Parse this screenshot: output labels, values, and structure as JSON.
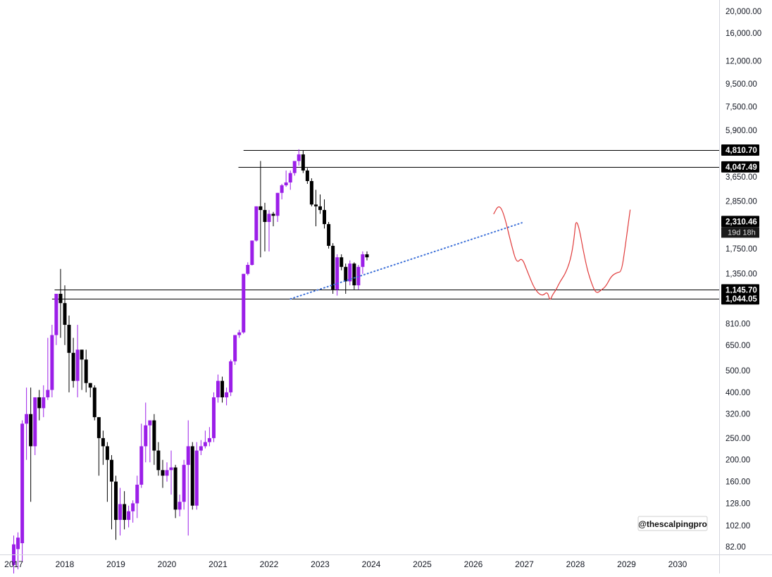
{
  "chart_data": {
    "type": "candlestick",
    "scale": "log",
    "interval": "1M",
    "colors": {
      "up": "#9b1ee8",
      "down": "#000000",
      "trendline": "#3b6fd8",
      "projection": "#e03a3a",
      "level": "#000000",
      "badge_bg": "#000000",
      "badge_text": "#ffffff"
    },
    "price_axis": {
      "ticks": [
        20000,
        16000,
        12000,
        9500,
        7500,
        5900,
        4810.7,
        4047.49,
        3650,
        2850,
        2310.46,
        1750,
        1350,
        1145.7,
        1044.05,
        810,
        650,
        500,
        400,
        320,
        250,
        200,
        160,
        128,
        102,
        82
      ],
      "tick_labels": [
        "20,000.00",
        "16,000.00",
        "12,000.00",
        "9,500.00",
        "7,500.00",
        "5,900.00",
        "4,810.70",
        "4,047.49",
        "3,650.00",
        "2,850.00",
        "2,310.46",
        "1,750.00",
        "1,350.00",
        "1,145.70",
        "1,044.05",
        "810.00",
        "650.00",
        "500.00",
        "400.00",
        "320.00",
        "250.00",
        "200.00",
        "160.00",
        "128.00",
        "102.00",
        "82.00"
      ],
      "range": [
        70,
        23500
      ]
    },
    "time_axis": {
      "labels": [
        "2017",
        "2018",
        "2019",
        "2020",
        "2021",
        "2022",
        "2023",
        "2024",
        "2025",
        "2026",
        "2027",
        "2028",
        "2029",
        "2030"
      ],
      "range": [
        2016.85,
        2030.9
      ]
    },
    "levels": [
      {
        "price": 4810.7,
        "label": "4,810.70",
        "from": 2021.5
      },
      {
        "price": 4047.49,
        "label": "4,047.49",
        "from": 2021.4
      },
      {
        "price": 1145.7,
        "label": "1,145.70",
        "from": 2017.8
      },
      {
        "price": 1044.05,
        "label": "1,044.05",
        "from": 2017.75
      }
    ],
    "current_price": {
      "price": 2310.46,
      "label": "2,310.46",
      "countdown": "19d 18h"
    },
    "trendline": {
      "points": [
        [
          2022.42,
          1044
        ],
        [
          2026.95,
          2280
        ]
      ],
      "style": "dotted"
    },
    "projection_path": [
      [
        2026.4,
        2500
      ],
      [
        2026.5,
        2750
      ],
      [
        2026.6,
        2500
      ],
      [
        2026.75,
        1800
      ],
      [
        2026.85,
        1500
      ],
      [
        2026.95,
        1600
      ],
      [
        2027.05,
        1400
      ],
      [
        2027.2,
        1150
      ],
      [
        2027.35,
        1070
      ],
      [
        2027.45,
        1130
      ],
      [
        2027.5,
        1020
      ],
      [
        2027.55,
        1090
      ],
      [
        2027.62,
        1145
      ],
      [
        2027.7,
        1250
      ],
      [
        2027.8,
        1350
      ],
      [
        2027.9,
        1550
      ],
      [
        2027.97,
        1900
      ],
      [
        2028.02,
        2500
      ],
      [
        2028.2,
        1500
      ],
      [
        2028.3,
        1250
      ],
      [
        2028.4,
        1100
      ],
      [
        2028.5,
        1140
      ],
      [
        2028.6,
        1190
      ],
      [
        2028.7,
        1320
      ],
      [
        2028.82,
        1370
      ],
      [
        2028.9,
        1380
      ],
      [
        2028.97,
        1750
      ],
      [
        2029.07,
        2600
      ]
    ],
    "candles": [
      {
        "t": 2017.0,
        "o": 68,
        "h": 92,
        "l": 60,
        "c": 84
      },
      {
        "t": 2017.083,
        "o": 80,
        "h": 95,
        "l": 65,
        "c": 90
      },
      {
        "t": 2017.167,
        "o": 85,
        "h": 300,
        "l": 70,
        "c": 290
      },
      {
        "t": 2017.25,
        "o": 290,
        "h": 420,
        "l": 200,
        "c": 320
      },
      {
        "t": 2017.333,
        "o": 320,
        "h": 420,
        "l": 130,
        "c": 230
      },
      {
        "t": 2017.417,
        "o": 230,
        "h": 380,
        "l": 210,
        "c": 380
      },
      {
        "t": 2017.5,
        "o": 380,
        "h": 410,
        "l": 300,
        "c": 340
      },
      {
        "t": 2017.583,
        "o": 340,
        "h": 430,
        "l": 310,
        "c": 380
      },
      {
        "t": 2017.667,
        "o": 380,
        "h": 700,
        "l": 370,
        "c": 410
      },
      {
        "t": 2017.75,
        "o": 410,
        "h": 800,
        "l": 380,
        "c": 720
      },
      {
        "t": 2017.833,
        "o": 720,
        "h": 1100,
        "l": 650,
        "c": 1100
      },
      {
        "t": 2017.917,
        "o": 1100,
        "h": 1420,
        "l": 700,
        "c": 1000
      },
      {
        "t": 2018.0,
        "o": 1000,
        "h": 1200,
        "l": 650,
        "c": 800
      },
      {
        "t": 2018.083,
        "o": 800,
        "h": 880,
        "l": 400,
        "c": 600
      },
      {
        "t": 2018.167,
        "o": 600,
        "h": 700,
        "l": 420,
        "c": 450
      },
      {
        "t": 2018.25,
        "o": 450,
        "h": 800,
        "l": 380,
        "c": 620
      },
      {
        "t": 2018.333,
        "o": 620,
        "h": 580,
        "l": 410,
        "c": 560
      },
      {
        "t": 2018.417,
        "o": 560,
        "h": 620,
        "l": 400,
        "c": 440
      },
      {
        "t": 2018.5,
        "o": 440,
        "h": 440,
        "l": 380,
        "c": 420
      },
      {
        "t": 2018.583,
        "o": 420,
        "h": 430,
        "l": 300,
        "c": 310
      },
      {
        "t": 2018.667,
        "o": 310,
        "h": 310,
        "l": 170,
        "c": 250
      },
      {
        "t": 2018.75,
        "o": 250,
        "h": 270,
        "l": 190,
        "c": 230
      },
      {
        "t": 2018.833,
        "o": 230,
        "h": 240,
        "l": 130,
        "c": 200
      },
      {
        "t": 2018.917,
        "o": 200,
        "h": 210,
        "l": 98,
        "c": 160
      },
      {
        "t": 2019.0,
        "o": 160,
        "h": 170,
        "l": 88,
        "c": 108
      },
      {
        "t": 2019.083,
        "o": 108,
        "h": 150,
        "l": 92,
        "c": 127
      },
      {
        "t": 2019.167,
        "o": 127,
        "h": 145,
        "l": 98,
        "c": 108
      },
      {
        "t": 2019.25,
        "o": 108,
        "h": 125,
        "l": 100,
        "c": 118
      },
      {
        "t": 2019.333,
        "o": 118,
        "h": 132,
        "l": 105,
        "c": 128
      },
      {
        "t": 2019.417,
        "o": 128,
        "h": 170,
        "l": 110,
        "c": 155
      },
      {
        "t": 2019.5,
        "o": 155,
        "h": 290,
        "l": 150,
        "c": 230
      },
      {
        "t": 2019.583,
        "o": 230,
        "h": 360,
        "l": 195,
        "c": 285
      },
      {
        "t": 2019.667,
        "o": 285,
        "h": 300,
        "l": 195,
        "c": 300
      },
      {
        "t": 2019.75,
        "o": 300,
        "h": 320,
        "l": 190,
        "c": 220
      },
      {
        "t": 2019.833,
        "o": 220,
        "h": 240,
        "l": 170,
        "c": 180
      },
      {
        "t": 2019.917,
        "o": 180,
        "h": 200,
        "l": 150,
        "c": 170
      },
      {
        "t": 2020.0,
        "o": 170,
        "h": 195,
        "l": 160,
        "c": 180
      },
      {
        "t": 2020.083,
        "o": 180,
        "h": 220,
        "l": 140,
        "c": 185
      },
      {
        "t": 2020.167,
        "o": 185,
        "h": 190,
        "l": 110,
        "c": 120
      },
      {
        "t": 2020.25,
        "o": 120,
        "h": 140,
        "l": 112,
        "c": 130
      },
      {
        "t": 2020.333,
        "o": 130,
        "h": 200,
        "l": 120,
        "c": 190
      },
      {
        "t": 2020.417,
        "o": 190,
        "h": 300,
        "l": 92,
        "c": 230
      },
      {
        "t": 2020.5,
        "o": 230,
        "h": 240,
        "l": 120,
        "c": 125
      },
      {
        "t": 2020.583,
        "o": 125,
        "h": 240,
        "l": 120,
        "c": 220
      },
      {
        "t": 2020.667,
        "o": 220,
        "h": 245,
        "l": 210,
        "c": 230
      },
      {
        "t": 2020.75,
        "o": 230,
        "h": 270,
        "l": 225,
        "c": 240
      },
      {
        "t": 2020.833,
        "o": 240,
        "h": 280,
        "l": 230,
        "c": 250
      },
      {
        "t": 2020.917,
        "o": 250,
        "h": 400,
        "l": 240,
        "c": 380
      },
      {
        "t": 2021.0,
        "o": 380,
        "h": 480,
        "l": 360,
        "c": 450
      },
      {
        "t": 2021.083,
        "o": 450,
        "h": 470,
        "l": 360,
        "c": 380
      },
      {
        "t": 2021.167,
        "o": 380,
        "h": 420,
        "l": 350,
        "c": 400
      },
      {
        "t": 2021.25,
        "o": 400,
        "h": 560,
        "l": 385,
        "c": 550
      },
      {
        "t": 2021.333,
        "o": 550,
        "h": 720,
        "l": 530,
        "c": 720
      },
      {
        "t": 2021.417,
        "o": 720,
        "h": 760,
        "l": 700,
        "c": 740
      },
      {
        "t": 2021.5,
        "o": 740,
        "h": 1350,
        "l": 730,
        "c": 1350
      },
      {
        "t": 2021.583,
        "o": 1350,
        "h": 1520,
        "l": 1330,
        "c": 1480
      },
      {
        "t": 2021.667,
        "o": 1480,
        "h": 1900,
        "l": 1470,
        "c": 1900
      },
      {
        "t": 2021.75,
        "o": 1900,
        "h": 2700,
        "l": 1880,
        "c": 2700
      },
      {
        "t": 2021.833,
        "o": 2700,
        "h": 4300,
        "l": 1600,
        "c": 2600
      },
      {
        "t": 2021.917,
        "o": 2600,
        "h": 2800,
        "l": 1700,
        "c": 2300
      },
      {
        "t": 2022.0,
        "o": 2300,
        "h": 2600,
        "l": 1700,
        "c": 2500
      },
      {
        "t": 2022.083,
        "o": 2500,
        "h": 2550,
        "l": 2200,
        "c": 2450
      },
      {
        "t": 2022.167,
        "o": 2450,
        "h": 3100,
        "l": 2300,
        "c": 3100
      },
      {
        "t": 2022.25,
        "o": 3100,
        "h": 3400,
        "l": 2900,
        "c": 3350
      },
      {
        "t": 2022.333,
        "o": 3350,
        "h": 3900,
        "l": 3300,
        "c": 3450
      },
      {
        "t": 2022.417,
        "o": 3450,
        "h": 3900,
        "l": 3200,
        "c": 3800
      },
      {
        "t": 2022.5,
        "o": 3800,
        "h": 4300,
        "l": 3700,
        "c": 4300
      },
      {
        "t": 2022.583,
        "o": 4300,
        "h": 4850,
        "l": 4100,
        "c": 4600
      },
      {
        "t": 2022.667,
        "o": 4600,
        "h": 4800,
        "l": 3800,
        "c": 3900
      },
      {
        "t": 2022.75,
        "o": 3900,
        "h": 4000,
        "l": 3400,
        "c": 3500
      },
      {
        "t": 2022.833,
        "o": 3500,
        "h": 3600,
        "l": 2700,
        "c": 2750
      },
      {
        "t": 2022.917,
        "o": 2750,
        "h": 3200,
        "l": 2200,
        "c": 2700
      },
      {
        "t": 2023.0,
        "o": 2700,
        "h": 3050,
        "l": 2500,
        "c": 2600
      },
      {
        "t": 2023.083,
        "o": 2600,
        "h": 2900,
        "l": 2150,
        "c": 2250
      },
      {
        "t": 2023.167,
        "o": 2250,
        "h": 2300,
        "l": 1750,
        "c": 1800
      },
      {
        "t": 2023.25,
        "o": 1800,
        "h": 1850,
        "l": 1100,
        "c": 1150
      },
      {
        "t": 2023.333,
        "o": 1150,
        "h": 1650,
        "l": 1080,
        "c": 1600
      },
      {
        "t": 2023.417,
        "o": 1600,
        "h": 1650,
        "l": 1400,
        "c": 1450
      },
      {
        "t": 2023.5,
        "o": 1450,
        "h": 1500,
        "l": 1100,
        "c": 1250
      },
      {
        "t": 2023.583,
        "o": 1250,
        "h": 1550,
        "l": 1200,
        "c": 1500
      },
      {
        "t": 2023.667,
        "o": 1500,
        "h": 1520,
        "l": 1150,
        "c": 1200
      },
      {
        "t": 2023.75,
        "o": 1200,
        "h": 1480,
        "l": 1150,
        "c": 1450
      },
      {
        "t": 2023.833,
        "o": 1450,
        "h": 1700,
        "l": 1350,
        "c": 1650
      },
      {
        "t": 2023.917,
        "o": 1650,
        "h": 1700,
        "l": 1550,
        "c": 1600
      }
    ]
  },
  "watermark": {
    "text": "@thescalpingpro"
  }
}
